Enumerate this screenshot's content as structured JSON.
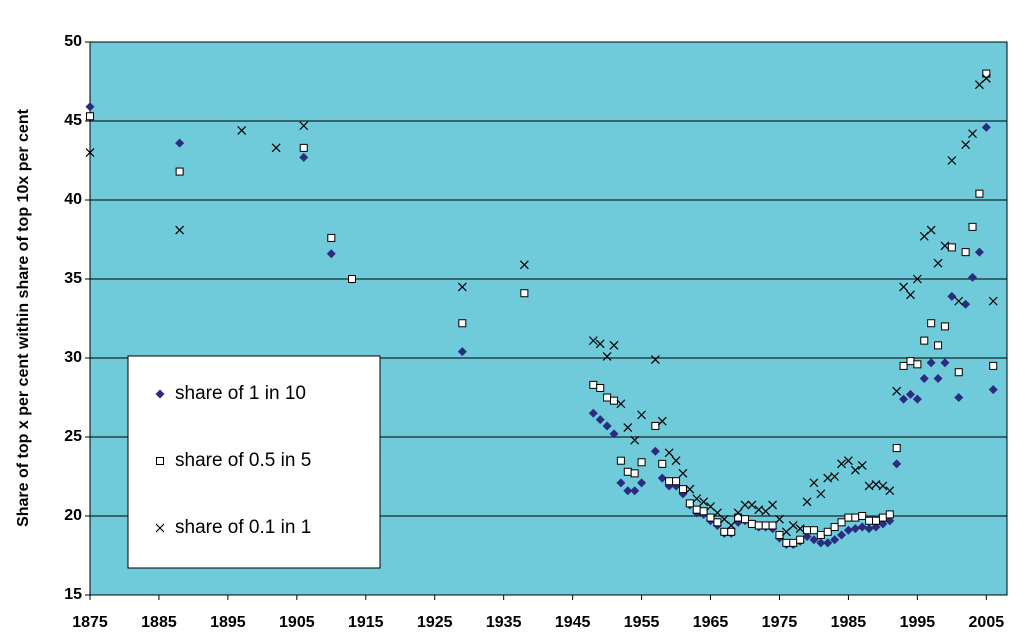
{
  "chart_data": {
    "type": "scatter",
    "y_label": "Share of top x per cent within share of top 10x per cent",
    "xlim": [
      1875,
      2008
    ],
    "ylim": [
      15,
      50
    ],
    "xticks": [
      1875,
      1885,
      1895,
      1905,
      1915,
      1925,
      1935,
      1945,
      1955,
      1965,
      1975,
      1985,
      1995,
      2005
    ],
    "yticks": [
      15,
      20,
      25,
      30,
      35,
      40,
      45,
      50
    ],
    "grid": true,
    "legend": "lower left",
    "background": "#6fcad9",
    "series": [
      {
        "name": "share of 1 in 10",
        "color": "#2b2b80",
        "marker": "diamond",
        "x": [
          1875,
          1888,
          1906,
          1910,
          1913,
          1929,
          1948,
          1949,
          1950,
          1951,
          1952,
          1953,
          1954,
          1955,
          1957,
          1958,
          1959,
          1960,
          1961,
          1962,
          1963,
          1964,
          1965,
          1966,
          1967,
          1968,
          1969,
          1970,
          1971,
          1972,
          1973,
          1974,
          1975,
          1976,
          1977,
          1978,
          1979,
          1980,
          1981,
          1982,
          1983,
          1984,
          1985,
          1986,
          1987,
          1988,
          1989,
          1990,
          1991,
          1992,
          1993,
          1994,
          1995,
          1996,
          1997,
          1998,
          1999,
          2000,
          2001,
          2002,
          2003,
          2004,
          2005,
          2006
        ],
        "values": [
          45.9,
          43.6,
          42.7,
          36.6,
          35.0,
          30.4,
          26.5,
          26.1,
          25.7,
          25.2,
          22.1,
          21.6,
          21.6,
          22.1,
          24.1,
          22.4,
          21.9,
          21.9,
          21.4,
          20.7,
          20.2,
          20.1,
          19.7,
          19.4,
          18.9,
          18.9,
          19.6,
          19.7,
          19.5,
          19.3,
          19.3,
          19.2,
          18.6,
          18.2,
          18.2,
          18.4,
          18.7,
          18.5,
          18.3,
          18.3,
          18.5,
          18.8,
          19.1,
          19.2,
          19.3,
          19.2,
          19.3,
          19.5,
          19.7,
          23.3,
          27.4,
          27.7,
          27.4,
          28.7,
          29.7,
          28.7,
          29.7,
          33.9,
          27.5,
          33.4,
          35.1,
          36.7,
          44.6,
          28.0
        ]
      },
      {
        "name": "share of 0.5 in 5",
        "color": "#000000",
        "marker": "square",
        "x": [
          1875,
          1888,
          1906,
          1910,
          1913,
          1929,
          1938,
          1948,
          1949,
          1950,
          1951,
          1952,
          1953,
          1954,
          1955,
          1957,
          1958,
          1959,
          1960,
          1961,
          1962,
          1963,
          1964,
          1965,
          1966,
          1967,
          1968,
          1969,
          1970,
          1971,
          1972,
          1973,
          1974,
          1975,
          1976,
          1977,
          1978,
          1979,
          1980,
          1981,
          1982,
          1983,
          1984,
          1985,
          1986,
          1987,
          1988,
          1989,
          1990,
          1991,
          1992,
          1993,
          1994,
          1995,
          1996,
          1997,
          1998,
          1999,
          2000,
          2001,
          2002,
          2003,
          2004,
          2005,
          2006
        ],
        "values": [
          45.3,
          41.8,
          43.3,
          37.6,
          35.0,
          32.2,
          34.1,
          28.3,
          28.1,
          27.5,
          27.3,
          23.5,
          22.8,
          22.7,
          23.4,
          25.7,
          23.3,
          22.2,
          22.2,
          21.7,
          20.8,
          20.4,
          20.3,
          19.9,
          19.6,
          19.0,
          19.0,
          19.9,
          19.8,
          19.5,
          19.4,
          19.4,
          19.4,
          18.8,
          18.3,
          18.3,
          18.5,
          19.1,
          19.1,
          18.8,
          19.0,
          19.3,
          19.6,
          19.9,
          19.9,
          20.0,
          19.7,
          19.7,
          19.9,
          20.1,
          24.3,
          29.5,
          29.8,
          29.6,
          31.1,
          32.2,
          30.8,
          32.0,
          37.0,
          29.1,
          36.7,
          38.3,
          40.4,
          48.0,
          29.5
        ]
      },
      {
        "name": "share of 0.1 in 1",
        "color": "#000000",
        "marker": "x",
        "x": [
          1875,
          1888,
          1897,
          1902,
          1906,
          1929,
          1938,
          1948,
          1949,
          1950,
          1951,
          1952,
          1953,
          1954,
          1955,
          1957,
          1958,
          1959,
          1960,
          1961,
          1962,
          1963,
          1964,
          1965,
          1966,
          1967,
          1968,
          1969,
          1970,
          1971,
          1972,
          1973,
          1974,
          1975,
          1976,
          1977,
          1978,
          1979,
          1980,
          1981,
          1982,
          1983,
          1984,
          1985,
          1986,
          1987,
          1988,
          1989,
          1990,
          1991,
          1992,
          1993,
          1994,
          1995,
          1996,
          1997,
          1998,
          1999,
          2000,
          2001,
          2002,
          2003,
          2004,
          2005,
          2006
        ],
        "values": [
          43.0,
          38.1,
          44.4,
          43.3,
          44.7,
          34.5,
          35.9,
          31.1,
          30.9,
          30.1,
          30.8,
          27.1,
          25.6,
          24.8,
          26.4,
          29.9,
          26.0,
          24.0,
          23.5,
          22.7,
          21.7,
          21.1,
          20.9,
          20.6,
          20.2,
          19.8,
          19.4,
          20.2,
          20.7,
          20.7,
          20.4,
          20.3,
          20.7,
          19.8,
          19.0,
          19.4,
          19.2,
          20.9,
          22.1,
          21.4,
          22.4,
          22.5,
          23.3,
          23.5,
          22.9,
          23.2,
          21.9,
          22.0,
          21.9,
          21.6,
          27.9,
          34.5,
          34.0,
          35.0,
          37.7,
          38.1,
          36.0,
          37.1,
          42.5,
          33.6,
          43.5,
          44.2,
          47.3,
          47.7,
          33.6
        ]
      }
    ]
  }
}
